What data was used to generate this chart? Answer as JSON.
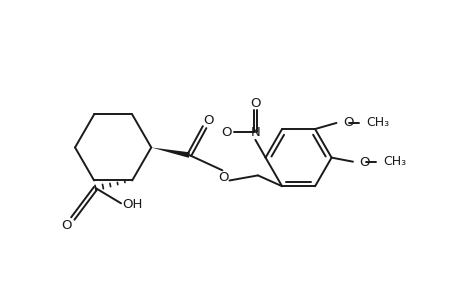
{
  "background_color": "#ffffff",
  "line_color": "#1a1a1a",
  "line_width": 1.4,
  "font_size": 9.5,
  "figsize": [
    4.6,
    3.0
  ],
  "dpi": 100,
  "xlim": [
    0.0,
    9.0
  ],
  "ylim": [
    -1.0,
    4.5
  ]
}
